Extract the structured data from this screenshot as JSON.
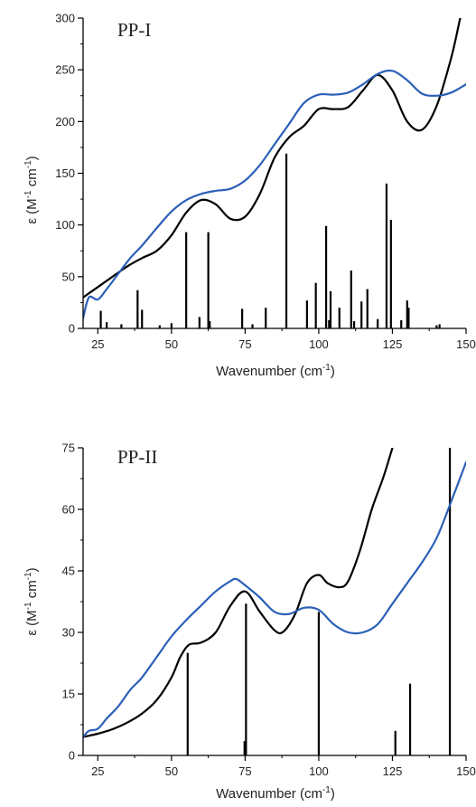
{
  "chart_data": [
    {
      "type": "line",
      "panel_label": "PP-I",
      "xlabel": "Wavenumber (cm",
      "xlabel_sup": "-1",
      "xlabel_tail": ")",
      "ylabel": "ε (M",
      "ylabel_sup1": "-1",
      "ylabel_mid": " cm",
      "ylabel_sup2": "-1",
      "ylabel_tail": ")",
      "xlim": [
        20,
        150
      ],
      "ylim": [
        0,
        300
      ],
      "xticks": [
        25,
        50,
        75,
        100,
        125,
        150
      ],
      "yticks": [
        0,
        50,
        100,
        150,
        200,
        250,
        300
      ],
      "colors": {
        "black_curve": "#000000",
        "blue_curve": "#2b5fb8",
        "sticks": "#000000"
      },
      "series": [
        {
          "color": "#000000",
          "x": [
            20,
            25,
            30,
            35,
            40,
            45,
            50,
            55,
            60,
            65,
            70,
            75,
            80,
            85,
            90,
            95,
            100,
            105,
            110,
            115,
            120,
            125,
            130,
            135,
            140,
            145,
            148
          ],
          "y": [
            30,
            40,
            50,
            60,
            68,
            75,
            90,
            112,
            124,
            120,
            106,
            108,
            130,
            165,
            185,
            196,
            212,
            212,
            214,
            230,
            245,
            230,
            200,
            192,
            215,
            262,
            300
          ]
        },
        {
          "color": "#2b5fb8",
          "x": [
            20,
            22,
            25,
            28,
            32,
            36,
            40,
            45,
            50,
            55,
            60,
            65,
            70,
            75,
            80,
            85,
            90,
            95,
            100,
            105,
            110,
            115,
            120,
            125,
            130,
            135,
            140,
            145,
            150
          ],
          "y": [
            10,
            30,
            28,
            38,
            53,
            68,
            80,
            97,
            113,
            124,
            130,
            133,
            135,
            143,
            158,
            178,
            198,
            218,
            226,
            226,
            228,
            236,
            246,
            249,
            240,
            227,
            225,
            228,
            236
          ]
        }
      ],
      "sticks": {
        "x": [
          26,
          28,
          33,
          38.5,
          40,
          46,
          50,
          55,
          59.5,
          62.5,
          63,
          74,
          77.5,
          82,
          89,
          96,
          99,
          102.5,
          103.5,
          104,
          107,
          111,
          112,
          114.5,
          116.5,
          120,
          123,
          124.5,
          128,
          130,
          130.5,
          140,
          141
        ],
        "y": [
          17,
          6,
          4,
          37,
          18,
          3,
          5,
          93,
          11,
          93,
          7,
          19,
          4,
          20,
          169,
          27,
          44,
          99,
          8,
          36,
          20,
          56,
          7,
          26,
          38,
          9,
          140,
          105,
          8,
          27,
          20,
          3,
          4
        ]
      }
    },
    {
      "type": "line",
      "panel_label": "PP-II",
      "xlabel": "Wavenumber (cm",
      "xlabel_sup": "-1",
      "xlabel_tail": ")",
      "ylabel": "ε (M",
      "ylabel_sup1": "-1",
      "ylabel_mid": " cm",
      "ylabel_sup2": "-1",
      "ylabel_tail": ")",
      "xlim": [
        20,
        150
      ],
      "ylim": [
        0,
        75
      ],
      "xticks": [
        25,
        50,
        75,
        100,
        125,
        150
      ],
      "yticks": [
        0,
        15,
        30,
        45,
        60,
        75
      ],
      "colors": {
        "black_curve": "#000000",
        "blue_curve": "#2b5fb8",
        "sticks": "#000000"
      },
      "series": [
        {
          "color": "#000000",
          "x": [
            20,
            25,
            30,
            35,
            40,
            45,
            50,
            53,
            56,
            60,
            65,
            70,
            75,
            80,
            85,
            88,
            92,
            96,
            100,
            103,
            107,
            110,
            114,
            118,
            122,
            125
          ],
          "y": [
            4.5,
            5.3,
            6.4,
            8,
            10.2,
            13.5,
            19,
            24,
            27,
            27.5,
            30,
            36.5,
            40,
            35,
            30.5,
            30.2,
            34.5,
            42,
            44,
            42,
            41,
            42.5,
            50,
            60,
            68,
            75
          ]
        },
        {
          "color": "#2b5fb8",
          "x": [
            20,
            22,
            25,
            28,
            32,
            36,
            40,
            45,
            50,
            55,
            60,
            65,
            70,
            72,
            75,
            80,
            85,
            90,
            95,
            100,
            105,
            110,
            115,
            120,
            125,
            130,
            135,
            140,
            145,
            150
          ],
          "y": [
            4.5,
            6,
            6.5,
            9,
            12,
            16,
            19,
            24,
            29,
            33,
            36.5,
            40,
            42.5,
            43,
            41.5,
            38.5,
            35,
            34.5,
            36,
            35.5,
            32,
            30,
            30,
            32,
            37,
            42,
            47,
            53,
            62,
            71.5
          ]
        }
      ],
      "sticks": {
        "x": [
          55.5,
          74.8,
          75.3,
          100,
          126,
          131,
          144.5
        ],
        "y": [
          25,
          3.5,
          37,
          35,
          6,
          17.5,
          75
        ]
      }
    }
  ]
}
